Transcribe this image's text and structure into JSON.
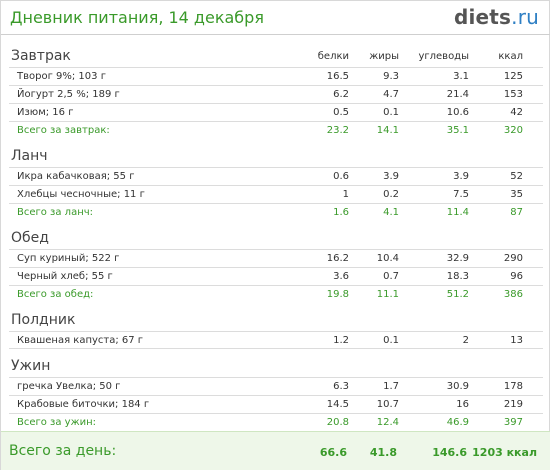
{
  "header": {
    "title": "Дневник питания, 14 декабря",
    "logo_main": "diets",
    "logo_tld": ".ru"
  },
  "columns": {
    "protein": "белки",
    "fat": "жиры",
    "carbs": "углеводы",
    "kcal": "ккал"
  },
  "meals": [
    {
      "name": "Завтрак",
      "items": [
        {
          "name": "Творог 9%; 103 г",
          "protein": "16.5",
          "fat": "9.3",
          "carbs": "3.1",
          "kcal": "125"
        },
        {
          "name": "Йогурт 2,5 %; 189 г",
          "protein": "6.2",
          "fat": "4.7",
          "carbs": "21.4",
          "kcal": "153"
        },
        {
          "name": "Изюм; 16 г",
          "protein": "0.5",
          "fat": "0.1",
          "carbs": "10.6",
          "kcal": "42"
        }
      ],
      "total": {
        "label": "Всего за завтрак:",
        "protein": "23.2",
        "fat": "14.1",
        "carbs": "35.1",
        "kcal": "320"
      }
    },
    {
      "name": "Ланч",
      "items": [
        {
          "name": "Икра кабачковая; 55 г",
          "protein": "0.6",
          "fat": "3.9",
          "carbs": "3.9",
          "kcal": "52"
        },
        {
          "name": "Хлебцы чесночные; 11 г",
          "protein": "1",
          "fat": "0.2",
          "carbs": "7.5",
          "kcal": "35"
        }
      ],
      "total": {
        "label": "Всего за ланч:",
        "protein": "1.6",
        "fat": "4.1",
        "carbs": "11.4",
        "kcal": "87"
      }
    },
    {
      "name": "Обед",
      "items": [
        {
          "name": "Суп куриный; 522 г",
          "protein": "16.2",
          "fat": "10.4",
          "carbs": "32.9",
          "kcal": "290"
        },
        {
          "name": "Черный хлеб; 55 г",
          "protein": "3.6",
          "fat": "0.7",
          "carbs": "18.3",
          "kcal": "96"
        }
      ],
      "total": {
        "label": "Всего за обед:",
        "protein": "19.8",
        "fat": "11.1",
        "carbs": "51.2",
        "kcal": "386"
      }
    },
    {
      "name": "Полдник",
      "items": [
        {
          "name": "Квашеная капуста; 67 г",
          "protein": "1.2",
          "fat": "0.1",
          "carbs": "2",
          "kcal": "13"
        }
      ],
      "total": null
    },
    {
      "name": "Ужин",
      "items": [
        {
          "name": "гречка Увелка; 50 г",
          "protein": "6.3",
          "fat": "1.7",
          "carbs": "30.9",
          "kcal": "178"
        },
        {
          "name": "Крабовые биточки; 184 г",
          "protein": "14.5",
          "fat": "10.7",
          "carbs": "16",
          "kcal": "219"
        }
      ],
      "total": {
        "label": "Всего за ужин:",
        "protein": "20.8",
        "fat": "12.4",
        "carbs": "46.9",
        "kcal": "397"
      }
    }
  ],
  "day_total": {
    "label": "Всего за день:",
    "protein": "66.6",
    "fat": "41.8",
    "carbs": "146.6",
    "kcal": "1203 ккал"
  },
  "colors": {
    "accent_green": "#3a9a2a",
    "logo_blue": "#2e7fc4",
    "total_bg": "#eef7e9"
  }
}
